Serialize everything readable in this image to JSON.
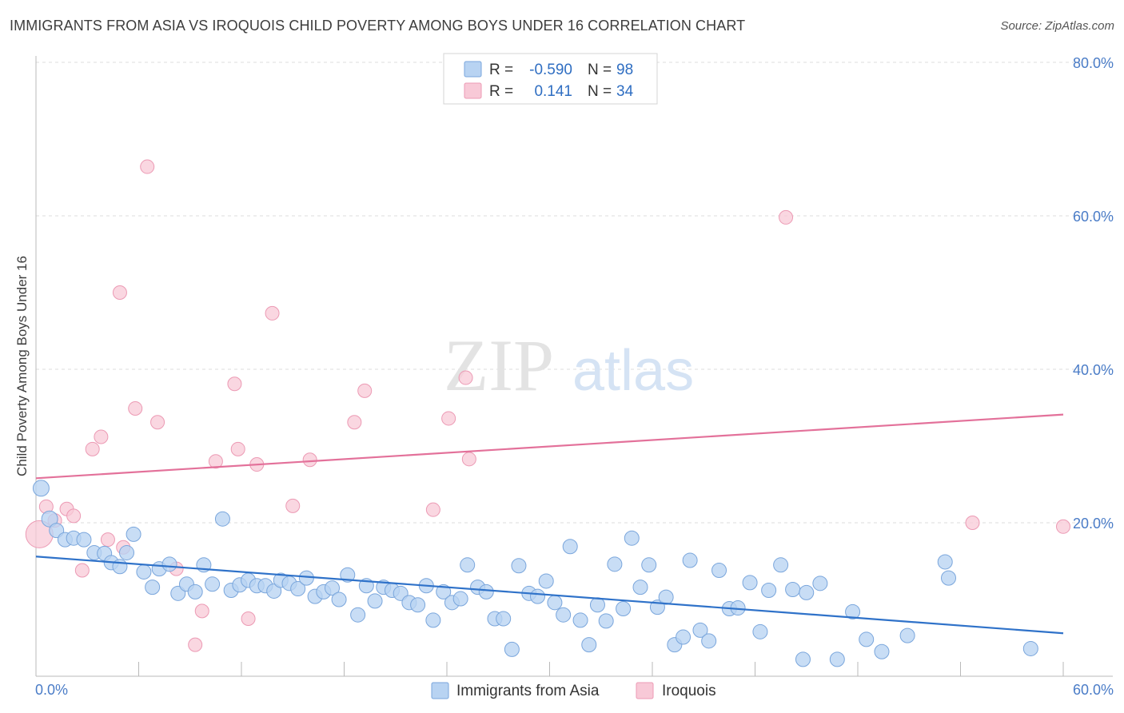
{
  "title": "IMMIGRANTS FROM ASIA VS IROQUOIS CHILD POVERTY AMONG BOYS UNDER 16 CORRELATION CHART",
  "source": "Source: ZipAtlas.com",
  "watermark": {
    "zip": "ZIP",
    "atlas": "atlas"
  },
  "colors": {
    "blue_fill": "#b8d3f2",
    "blue_stroke": "#7aa6dc",
    "blue_line": "#2f72c9",
    "pink_fill": "#f8c9d7",
    "pink_stroke": "#ec9ab4",
    "pink_line": "#e3719a",
    "tick_text": "#4a7cc7",
    "grid": "#dcdcdc"
  },
  "legend": {
    "rows": [
      {
        "r_label": "R =",
        "r_value": "-0.590",
        "n_label": "N =",
        "n_value": "98"
      },
      {
        "r_label": "R =",
        "r_value": "0.141",
        "n_label": "N =",
        "n_value": "34"
      }
    ]
  },
  "chart_data": {
    "type": "scatter",
    "title": "IMMIGRANTS FROM ASIA VS IROQUOIS CHILD POVERTY AMONG BOYS UNDER 16 CORRELATION CHART",
    "xlabel": "",
    "ylabel": "Child Poverty Among Boys Under 16",
    "xlim": [
      0,
      60
    ],
    "ylim": [
      0,
      80
    ],
    "x_tick_labels": [
      "0.0%",
      "60.0%"
    ],
    "y_tick_labels": [
      "20.0%",
      "40.0%",
      "60.0%",
      "80.0%"
    ],
    "y_ticks": [
      20,
      40,
      60,
      80
    ],
    "grid": true,
    "legend_position": "top-center",
    "series": [
      {
        "name": "Immigrants from Asia",
        "color": "#b8d3f2",
        "R": -0.59,
        "N": 98,
        "trend": {
          "x": [
            0,
            60
          ],
          "y": [
            15.6,
            5.6
          ]
        },
        "points": [
          [
            0.3,
            24.5
          ],
          [
            0.8,
            20.5
          ],
          [
            1.2,
            19.0
          ],
          [
            1.7,
            17.8
          ],
          [
            2.2,
            18.0
          ],
          [
            2.8,
            17.8
          ],
          [
            3.4,
            16.1
          ],
          [
            4.0,
            16.0
          ],
          [
            4.4,
            14.8
          ],
          [
            4.9,
            14.3
          ],
          [
            5.3,
            16.1
          ],
          [
            5.7,
            18.5
          ],
          [
            6.3,
            13.6
          ],
          [
            6.8,
            11.6
          ],
          [
            7.2,
            14.0
          ],
          [
            7.8,
            14.6
          ],
          [
            8.3,
            10.8
          ],
          [
            8.8,
            12.0
          ],
          [
            9.3,
            11.0
          ],
          [
            9.8,
            14.5
          ],
          [
            10.3,
            12.0
          ],
          [
            10.9,
            20.5
          ],
          [
            11.4,
            11.2
          ],
          [
            11.9,
            11.9
          ],
          [
            12.4,
            12.5
          ],
          [
            12.9,
            11.8
          ],
          [
            13.4,
            11.8
          ],
          [
            13.9,
            11.1
          ],
          [
            14.3,
            12.5
          ],
          [
            14.8,
            12.1
          ],
          [
            15.3,
            11.4
          ],
          [
            15.8,
            12.8
          ],
          [
            16.3,
            10.4
          ],
          [
            16.8,
            11.0
          ],
          [
            17.3,
            11.5
          ],
          [
            17.7,
            10.0
          ],
          [
            18.2,
            13.2
          ],
          [
            18.8,
            8.0
          ],
          [
            19.3,
            11.8
          ],
          [
            19.8,
            9.8
          ],
          [
            20.3,
            11.6
          ],
          [
            20.8,
            11.2
          ],
          [
            21.3,
            10.8
          ],
          [
            21.8,
            9.6
          ],
          [
            22.3,
            9.3
          ],
          [
            22.8,
            11.8
          ],
          [
            23.2,
            7.3
          ],
          [
            23.8,
            11.0
          ],
          [
            24.3,
            9.6
          ],
          [
            24.8,
            10.1
          ],
          [
            25.2,
            14.5
          ],
          [
            25.8,
            11.6
          ],
          [
            26.3,
            11.0
          ],
          [
            26.8,
            7.5
          ],
          [
            27.3,
            7.5
          ],
          [
            27.8,
            3.5
          ],
          [
            28.2,
            14.4
          ],
          [
            28.8,
            10.8
          ],
          [
            29.3,
            10.4
          ],
          [
            29.8,
            12.4
          ],
          [
            30.3,
            9.6
          ],
          [
            30.8,
            8.0
          ],
          [
            31.2,
            16.9
          ],
          [
            31.8,
            7.3
          ],
          [
            32.3,
            4.1
          ],
          [
            32.8,
            9.3
          ],
          [
            33.3,
            7.2
          ],
          [
            33.8,
            14.6
          ],
          [
            34.3,
            8.8
          ],
          [
            34.8,
            18.0
          ],
          [
            35.3,
            11.6
          ],
          [
            35.8,
            14.5
          ],
          [
            36.3,
            9.0
          ],
          [
            36.8,
            10.3
          ],
          [
            37.3,
            4.1
          ],
          [
            37.8,
            5.1
          ],
          [
            38.2,
            15.1
          ],
          [
            38.8,
            6.0
          ],
          [
            39.3,
            4.6
          ],
          [
            39.9,
            13.8
          ],
          [
            40.5,
            8.8
          ],
          [
            41.0,
            8.9
          ],
          [
            41.7,
            12.2
          ],
          [
            42.3,
            5.8
          ],
          [
            42.8,
            11.2
          ],
          [
            43.5,
            14.5
          ],
          [
            44.2,
            11.3
          ],
          [
            44.8,
            2.2
          ],
          [
            45.0,
            10.9
          ],
          [
            45.8,
            12.1
          ],
          [
            46.8,
            2.2
          ],
          [
            47.7,
            8.4
          ],
          [
            48.5,
            4.8
          ],
          [
            49.4,
            3.2
          ],
          [
            50.9,
            5.3
          ],
          [
            53.1,
            14.9
          ],
          [
            53.3,
            12.8
          ],
          [
            58.1,
            3.6
          ]
        ]
      },
      {
        "name": "Iroquois",
        "color": "#f8c9d7",
        "R": 0.141,
        "N": 34,
        "trend": {
          "x": [
            0,
            60
          ],
          "y": [
            25.8,
            34.1
          ]
        },
        "points": [
          [
            0.2,
            18.5
          ],
          [
            0.6,
            22.1
          ],
          [
            1.1,
            20.3
          ],
          [
            1.8,
            21.8
          ],
          [
            2.2,
            20.9
          ],
          [
            2.7,
            13.8
          ],
          [
            3.3,
            29.6
          ],
          [
            3.8,
            31.2
          ],
          [
            4.2,
            17.8
          ],
          [
            4.9,
            50.0
          ],
          [
            5.1,
            16.8
          ],
          [
            5.8,
            34.9
          ],
          [
            6.5,
            66.4
          ],
          [
            7.1,
            33.1
          ],
          [
            8.2,
            14.0
          ],
          [
            9.3,
            4.1
          ],
          [
            9.7,
            8.5
          ],
          [
            10.5,
            28.0
          ],
          [
            11.6,
            38.1
          ],
          [
            11.8,
            29.6
          ],
          [
            12.4,
            7.5
          ],
          [
            12.9,
            27.6
          ],
          [
            13.8,
            47.3
          ],
          [
            15.0,
            22.2
          ],
          [
            16.0,
            28.2
          ],
          [
            18.6,
            33.1
          ],
          [
            19.2,
            37.2
          ],
          [
            23.2,
            21.7
          ],
          [
            24.1,
            33.6
          ],
          [
            25.1,
            38.9
          ],
          [
            25.3,
            28.3
          ],
          [
            43.8,
            59.8
          ],
          [
            54.7,
            20.0
          ],
          [
            60.0,
            19.5
          ]
        ]
      }
    ]
  },
  "bottom_legend": [
    {
      "label": "Immigrants from Asia"
    },
    {
      "label": "Iroquois"
    }
  ]
}
